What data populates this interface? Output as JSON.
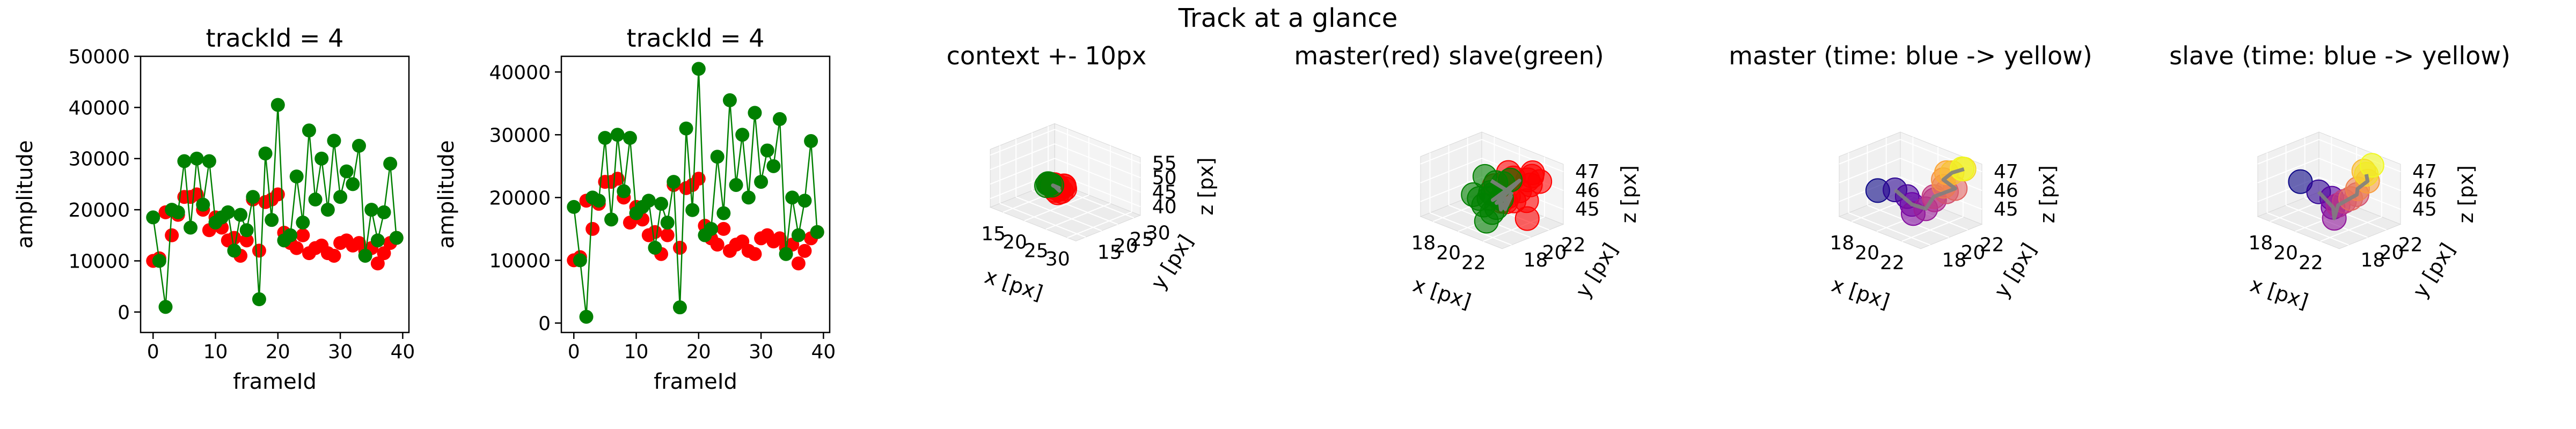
{
  "suptitle": "Track at a glance",
  "chart_data": [
    {
      "type": "scatter",
      "title": "trackId = 4",
      "xlabel": "frameId",
      "ylabel": "amplitude",
      "xlim": [
        -2,
        41
      ],
      "ylim": [
        -4000,
        50000
      ],
      "xticks": [
        "0",
        "10",
        "20",
        "30",
        "40"
      ],
      "yticks": [
        "0",
        "10000",
        "20000",
        "30000",
        "40000",
        "50000"
      ],
      "series": [
        {
          "color": "#ff0000",
          "x": [
            0,
            1,
            2,
            3,
            4,
            5,
            6,
            7,
            8,
            9,
            10,
            11,
            12,
            13,
            14,
            15,
            16,
            17,
            18,
            19,
            20,
            21,
            22,
            23,
            24,
            25,
            26,
            27,
            28,
            29,
            30,
            31,
            32,
            33,
            34,
            35,
            36,
            37,
            38,
            39
          ],
          "y": [
            10000,
            10500,
            19500,
            15000,
            19000,
            22500,
            22500,
            23000,
            20000,
            16000,
            18500,
            16500,
            14000,
            14500,
            11000,
            14000,
            22000,
            12000,
            21500,
            22000,
            23000,
            15500,
            13500,
            12500,
            15000,
            11500,
            12500,
            13000,
            11500,
            11000,
            13500,
            14000,
            13000,
            13500,
            12000,
            12500,
            9500,
            11500,
            13500,
            14500
          ],
          "marker": "circle"
        },
        {
          "color": "#008000",
          "x": [
            0,
            1,
            2,
            3,
            4,
            5,
            6,
            7,
            8,
            9,
            10,
            11,
            12,
            13,
            14,
            15,
            16,
            17,
            18,
            19,
            20,
            21,
            22,
            23,
            24,
            25,
            26,
            27,
            28,
            29,
            30,
            31,
            32,
            33,
            34,
            35,
            36,
            37,
            38,
            39
          ],
          "y": [
            18500,
            10000,
            1000,
            20000,
            19500,
            29500,
            16500,
            30000,
            21000,
            29500,
            17500,
            18500,
            19500,
            12000,
            19000,
            16000,
            22500,
            2500,
            31000,
            18000,
            40500,
            14000,
            15000,
            26500,
            17500,
            35500,
            22000,
            30000,
            20000,
            33500,
            22500,
            27500,
            25000,
            32500,
            11000,
            20000,
            14000,
            19500,
            29000,
            14500
          ],
          "marker": "circle",
          "line": true
        }
      ]
    },
    {
      "type": "scatter",
      "title": "trackId = 4",
      "xlabel": "frameId",
      "ylabel": "amplitude",
      "xlim": [
        -2,
        41
      ],
      "ylim": [
        -1500,
        42500
      ],
      "xticks": [
        "0",
        "10",
        "20",
        "30",
        "40"
      ],
      "yticks": [
        "0",
        "10000",
        "20000",
        "30000",
        "40000"
      ],
      "series": [
        {
          "color": "#ff0000",
          "x": [
            0,
            1,
            2,
            3,
            4,
            5,
            6,
            7,
            8,
            9,
            10,
            11,
            12,
            13,
            14,
            15,
            16,
            17,
            18,
            19,
            20,
            21,
            22,
            23,
            24,
            25,
            26,
            27,
            28,
            29,
            30,
            31,
            32,
            33,
            34,
            35,
            36,
            37,
            38,
            39
          ],
          "y": [
            10000,
            10500,
            19500,
            15000,
            19000,
            22500,
            22500,
            23000,
            20000,
            16000,
            18500,
            16500,
            14000,
            14500,
            11000,
            14000,
            22000,
            12000,
            21500,
            22000,
            23000,
            15500,
            13500,
            12500,
            15000,
            11500,
            12500,
            13000,
            11500,
            11000,
            13500,
            14000,
            13000,
            13500,
            12000,
            12500,
            9500,
            11500,
            13500,
            14500
          ],
          "marker": "circle"
        },
        {
          "color": "#008000",
          "x": [
            0,
            1,
            2,
            3,
            4,
            5,
            6,
            7,
            8,
            9,
            10,
            11,
            12,
            13,
            14,
            15,
            16,
            17,
            18,
            19,
            20,
            21,
            22,
            23,
            24,
            25,
            26,
            27,
            28,
            29,
            30,
            31,
            32,
            33,
            34,
            35,
            36,
            37,
            38,
            39
          ],
          "y": [
            18500,
            10000,
            1000,
            20000,
            19500,
            29500,
            16500,
            30000,
            21000,
            29500,
            17500,
            18500,
            19500,
            12000,
            19000,
            16000,
            22500,
            2500,
            31000,
            18000,
            40500,
            14000,
            15000,
            26500,
            17500,
            35500,
            22000,
            30000,
            20000,
            33500,
            22500,
            27500,
            25000,
            32500,
            11000,
            20000,
            14000,
            19500,
            29000,
            14500
          ],
          "marker": "circle",
          "line": true
        }
      ]
    },
    {
      "type": "scatter3d",
      "title": "context +- 10px",
      "xlabel": "x [px]",
      "ylabel": "y [px]",
      "zlabel": "z [px]",
      "xticks": [
        "15",
        "20",
        "25",
        "30"
      ],
      "yticks": [
        "15",
        "20",
        "25",
        "30"
      ],
      "zticks": [
        "40",
        "45",
        "50",
        "55"
      ],
      "xlim": [
        12,
        32
      ],
      "ylim": [
        12,
        32
      ],
      "zlim": [
        37,
        57
      ],
      "series": [
        {
          "name": "master",
          "color": "#ff0000",
          "x": [
            20.5,
            21,
            22,
            22.5,
            23,
            23,
            22.5,
            22,
            21.5,
            21,
            20.5,
            20,
            20,
            20.5,
            21.5,
            22
          ],
          "y": [
            20,
            21,
            21.5,
            21,
            20.5,
            19.5,
            19,
            19,
            19.5,
            20,
            20.5,
            21,
            20,
            19.5,
            19.5,
            20
          ],
          "z": [
            46,
            45.5,
            46,
            46.5,
            46,
            45.5,
            45,
            45.5,
            46,
            46.5,
            46,
            45.5,
            46,
            46.5,
            46,
            45.5
          ]
        },
        {
          "name": "slave",
          "color": "#008000",
          "x": [
            19.5,
            19.8,
            20,
            19.5
          ],
          "y": [
            19.5,
            20,
            20.5,
            20
          ],
          "z": [
            45.5,
            46,
            45.5,
            46
          ]
        },
        {
          "name": "path",
          "color": "#808080",
          "x": [
            20.5,
            21.5,
            22,
            21,
            20.5,
            21.5,
            22.5,
            21
          ],
          "y": [
            20,
            20.5,
            20,
            19.5,
            20.5,
            20,
            19.5,
            20
          ],
          "z": [
            46,
            45.5,
            46,
            46.5,
            45.5,
            46,
            45.5,
            46
          ]
        }
      ]
    },
    {
      "type": "scatter3d",
      "title": "master(red) slave(green)",
      "xlabel": "x [px]",
      "ylabel": "y [px]",
      "zlabel": "z [px]",
      "xticks": [
        "18",
        "20",
        "22"
      ],
      "yticks": [
        "18",
        "20",
        "22"
      ],
      "zticks": [
        "45",
        "46",
        "47"
      ],
      "xlim": [
        17,
        23.5
      ],
      "ylim": [
        17,
        23.5
      ],
      "zlim": [
        44.2,
        47.4
      ],
      "series": [
        {
          "name": "master",
          "color": "#ff0000",
          "x": [
            21,
            21.5,
            22,
            22.5,
            21,
            21.8,
            22.2,
            20.8,
            21.4,
            22.6,
            21.9,
            20.6,
            22.3,
            21.2,
            22.8,
            21.6
          ],
          "y": [
            21,
            20.5,
            22,
            21.5,
            19.5,
            22.5,
            20,
            21.8,
            20.2,
            22.2,
            19.8,
            20.8,
            21.2,
            22.8,
            20.6,
            21.4
          ],
          "z": [
            46.8,
            46.6,
            46.2,
            46.9,
            46.4,
            46.7,
            45.8,
            46.3,
            45.5,
            46.5,
            46.0,
            45.2,
            45.6,
            46.1,
            44.9,
            45.9
          ]
        },
        {
          "name": "slave",
          "color": "#008000",
          "x": [
            19.5,
            20,
            20.5,
            19.8,
            20.2,
            19.6,
            20.6,
            20.9,
            19.9,
            20.3,
            18.8,
            20.7,
            19.7,
            20.4
          ],
          "y": [
            20.5,
            21,
            20,
            19.5,
            21.5,
            20.8,
            19.8,
            20.4,
            21.2,
            19.6,
            20.2,
            21.6,
            20.1,
            19.9
          ],
          "z": [
            46.3,
            46.0,
            45.7,
            45.4,
            45.9,
            45.1,
            44.8,
            45.5,
            44.6,
            44.3,
            45.2,
            46.2,
            44.9,
            45.8
          ]
        },
        {
          "name": "path",
          "color": "#808080",
          "x": [
            20,
            21,
            20.5,
            21.5,
            20.2,
            21.8,
            20.6,
            21.2,
            20.1,
            21.6
          ],
          "y": [
            20.5,
            21,
            20,
            21.5,
            20.8,
            20.2,
            21.2,
            19.8,
            21.4,
            20.6
          ],
          "z": [
            46.2,
            45.8,
            45.4,
            46.4,
            45.0,
            45.9,
            44.7,
            45.6,
            44.5,
            46.0
          ]
        }
      ]
    },
    {
      "type": "scatter3d",
      "title": "master (time: blue -> yellow)",
      "xlabel": "x [px]",
      "ylabel": "y [px]",
      "zlabel": "z [px]",
      "xticks": [
        "18",
        "20",
        "22"
      ],
      "yticks": [
        "18",
        "20",
        "22"
      ],
      "zticks": [
        "45",
        "46",
        "47"
      ],
      "xlim": [
        17,
        23.5
      ],
      "ylim": [
        17,
        23.5
      ],
      "zlim": [
        44.2,
        47.4
      ],
      "series": [
        {
          "name": "master",
          "colormap": [
            "#0d0887",
            "#6a00a8",
            "#b12a90",
            "#e16462",
            "#fca636",
            "#f0f921"
          ],
          "x": [
            18.2,
            19.2,
            19.8,
            20.4,
            20.8,
            21.2,
            21.6,
            22.0,
            22.4,
            22.8,
            22.5,
            22.0,
            21.8,
            22.4,
            22.9,
            22.6
          ],
          "y": [
            19.5,
            20.0,
            20.5,
            20.2,
            19.8,
            20.6,
            21.0,
            20.4,
            21.2,
            21.6,
            20.8,
            21.4,
            22.0,
            21.8,
            22.4,
            22.6
          ],
          "z": [
            45.4,
            45.6,
            45.3,
            45.1,
            44.8,
            45.0,
            45.5,
            45.9,
            46.1,
            46.3,
            46.5,
            46.6,
            46.8,
            47.0,
            47.2,
            47.1
          ]
        },
        {
          "name": "path",
          "color": "#808080",
          "x": [
            19.2,
            20.4,
            21.2,
            22.0,
            22.8,
            22.0,
            22.4,
            22.9
          ],
          "y": [
            20.0,
            20.2,
            20.6,
            20.4,
            21.6,
            21.4,
            21.8,
            22.4
          ],
          "z": [
            45.6,
            45.1,
            45.0,
            45.9,
            46.3,
            46.6,
            47.0,
            47.2
          ]
        }
      ]
    },
    {
      "type": "scatter3d",
      "title": "slave (time: blue -> yellow)",
      "xlabel": "x [px]",
      "ylabel": "y [px]",
      "zlabel": "z [px]",
      "xticks": [
        "18",
        "20",
        "22"
      ],
      "yticks": [
        "18",
        "20",
        "22"
      ],
      "zticks": [
        "45",
        "46",
        "47"
      ],
      "xlim": [
        17,
        23.5
      ],
      "ylim": [
        17,
        23.5
      ],
      "zlim": [
        44.2,
        47.4
      ],
      "series": [
        {
          "name": "slave",
          "colormap": [
            "#0d0887",
            "#6a00a8",
            "#b12a90",
            "#e16462",
            "#fca636",
            "#f0f921"
          ],
          "x": [
            18.6,
            19.6,
            20.2,
            20.6,
            21.0,
            20.4,
            21.2,
            21.6,
            20.8,
            21.8,
            22.0,
            21.4,
            22.2,
            21.9
          ],
          "y": [
            19.4,
            20.0,
            20.6,
            20.2,
            19.8,
            21.0,
            20.6,
            21.4,
            21.8,
            21.2,
            22.0,
            22.4,
            21.6,
            22.6
          ],
          "z": [
            46.0,
            45.6,
            45.3,
            45.0,
            44.6,
            44.9,
            45.4,
            45.7,
            45.2,
            46.1,
            46.4,
            46.7,
            46.9,
            47.1
          ]
        },
        {
          "name": "path",
          "color": "#808080",
          "x": [
            19.6,
            20.6,
            21.0,
            20.4,
            21.6,
            21.8,
            22.0,
            22.2
          ],
          "y": [
            20.0,
            20.2,
            19.8,
            21.0,
            21.4,
            21.2,
            22.0,
            21.6
          ],
          "z": [
            45.6,
            45.0,
            44.6,
            44.9,
            45.7,
            46.1,
            46.4,
            46.9
          ]
        }
      ]
    }
  ]
}
